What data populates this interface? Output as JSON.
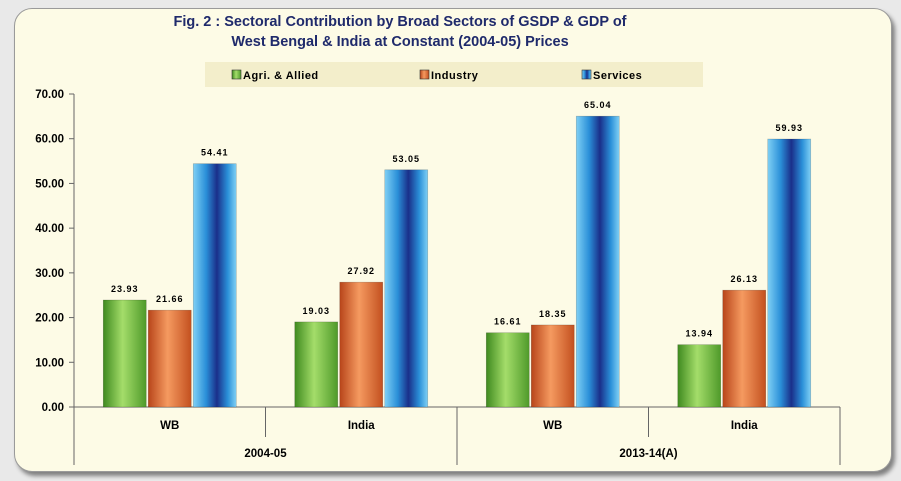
{
  "chart_data": {
    "type": "bar",
    "title": "Fig. 2 : Sectoral Contribution by Broad Sectors of GSDP & GDP of",
    "subtitle": "West Bengal & India at Constant (2004-05) Prices",
    "groups": [
      {
        "label": "2004-05",
        "categories": [
          "WB",
          "India"
        ]
      },
      {
        "label": "2013-14(A)",
        "categories": [
          "WB",
          "India"
        ]
      }
    ],
    "categories": [
      "WB",
      "India",
      "WB",
      "India"
    ],
    "series": [
      {
        "name": "Agri. & Allied",
        "color": "#6fb83a",
        "values": [
          23.93,
          19.03,
          16.61,
          13.94
        ],
        "labels": [
          "23.93",
          "19.03",
          "16.61",
          "13.94"
        ]
      },
      {
        "name": "Industry",
        "color": "#e0622a",
        "values": [
          21.66,
          27.92,
          18.35,
          26.13
        ],
        "labels": [
          "21.66",
          "27.92",
          "18.35",
          "26.13"
        ]
      },
      {
        "name": "Services",
        "color": "#1f6fc0",
        "values": [
          54.41,
          53.05,
          65.04,
          59.93
        ],
        "labels": [
          "54.41",
          "53.05",
          "65.04",
          "59.93"
        ]
      }
    ],
    "yticks": [
      "0.00",
      "10.00",
      "20.00",
      "30.00",
      "40.00",
      "50.00",
      "60.00",
      "70.00"
    ],
    "ylim": [
      0,
      70
    ],
    "legend_position": "top",
    "grid": false
  }
}
